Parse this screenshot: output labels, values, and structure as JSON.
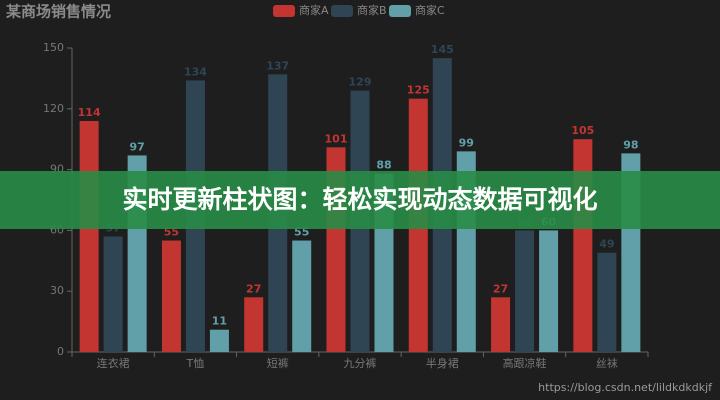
{
  "chart_data": {
    "type": "bar",
    "title": "某商场销售情况",
    "categories": [
      "连衣裙",
      "T恤",
      "短裤",
      "九分裤",
      "半身裙",
      "高跟凉鞋",
      "丝袜"
    ],
    "series": [
      {
        "name": "商家A",
        "color": "#c23531",
        "values": [
          114,
          55,
          27,
          101,
          125,
          27,
          105
        ]
      },
      {
        "name": "商家B",
        "color": "#2f4554",
        "values": [
          57,
          134,
          137,
          129,
          145,
          60,
          49
        ]
      },
      {
        "name": "商家C",
        "color": "#61a0a8",
        "values": [
          97,
          11,
          55,
          88,
          99,
          60,
          98
        ]
      }
    ],
    "ylim": [
      0,
      150
    ],
    "yticks": [
      0,
      30,
      60,
      90,
      120,
      150
    ],
    "grid": false,
    "legend": "top"
  },
  "overlay": {
    "banner": "实时更新柱状图：轻松实现动态数据可视化",
    "watermark": "https://blog.csdn.net/lildkdkdkjf"
  }
}
